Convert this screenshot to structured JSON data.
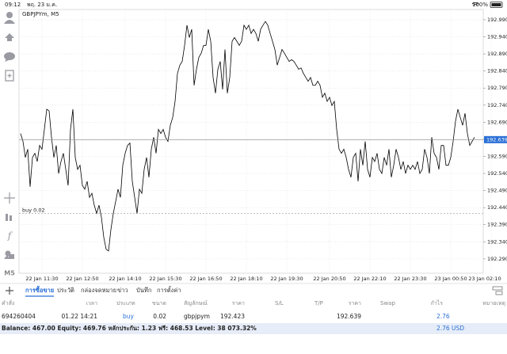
{
  "status_bar": {
    "time": "09:12",
    "date": "พฤ. 23 ม.ค.",
    "battery": "100%"
  },
  "chart_data": {
    "type": "line",
    "title": "GBPJPYm, M5",
    "color": "#000000",
    "grid": true,
    "categories": [
      null,
      null,
      null,
      null,
      null,
      null,
      null,
      null,
      null,
      "22 Jan 11:30",
      null,
      null,
      null,
      null,
      null,
      null,
      null,
      null,
      null,
      null,
      null,
      null,
      null,
      null,
      null,
      null,
      "22 Jan 12:50",
      null,
      null,
      null,
      null,
      null,
      null,
      null,
      null,
      null,
      null,
      null,
      null,
      null,
      null,
      null,
      null,
      null,
      "22 Jan 14:10",
      null,
      null,
      null,
      null,
      null,
      null,
      null,
      null,
      null,
      null,
      null,
      null,
      null,
      null,
      null,
      null,
      "22 Jan 15:30",
      null,
      null,
      null,
      null,
      null,
      null,
      null,
      null,
      null,
      null,
      null,
      null,
      null,
      null,
      null,
      null,
      "22 Jan 16:50",
      null,
      null,
      null,
      null,
      null,
      null,
      null,
      null,
      null,
      null,
      null,
      null,
      null,
      null,
      null,
      null,
      "22 Jan 18:10",
      null,
      null,
      null,
      null,
      null,
      null,
      null,
      null,
      null,
      null,
      null,
      null,
      null,
      null,
      null,
      null,
      "22 Jan 19:30",
      null,
      null,
      null,
      null,
      null,
      null,
      null,
      null,
      null,
      null,
      null,
      null,
      null,
      null,
      null,
      null,
      null,
      "22 Jan 20:50",
      null,
      null,
      null,
      null,
      null,
      null,
      null,
      null,
      null,
      null,
      null,
      null,
      null,
      null,
      null,
      null,
      "22 Jan 22:10",
      null,
      null,
      null,
      null,
      null,
      null,
      null,
      null,
      null,
      null,
      null,
      null,
      null,
      null,
      null,
      null,
      "22 Jan 23:30",
      null,
      null,
      null,
      null,
      null,
      null,
      null,
      null,
      null,
      null,
      null,
      null,
      null,
      null,
      null,
      null,
      "23 Jan 00:50",
      null,
      null,
      null,
      null,
      null,
      null,
      null,
      null,
      null,
      null,
      null,
      null,
      null,
      null,
      null,
      null,
      "23 Jan 02:10"
    ],
    "values": [
      192.657,
      192.634,
      192.587,
      192.611,
      192.501,
      192.587,
      192.599,
      192.575,
      192.622,
      192.611,
      192.669,
      192.728,
      192.723,
      192.646,
      192.587,
      192.622,
      192.54,
      192.575,
      192.599,
      192.552,
      192.505,
      192.669,
      192.728,
      192.587,
      192.552,
      192.564,
      192.505,
      192.494,
      192.517,
      192.47,
      192.482,
      192.447,
      192.423,
      192.447,
      192.412,
      192.353,
      192.318,
      192.313,
      192.376,
      192.423,
      192.458,
      192.494,
      192.47,
      192.564,
      192.599,
      192.622,
      192.629,
      192.517,
      192.47,
      192.423,
      192.494,
      192.482,
      192.552,
      192.587,
      192.529,
      192.611,
      192.646,
      192.599,
      192.669,
      192.657,
      192.669,
      192.646,
      192.634,
      192.681,
      192.704,
      192.751,
      192.833,
      192.857,
      192.868,
      192.915,
      192.974,
      192.938,
      192.962,
      192.798,
      192.845,
      192.88,
      192.892,
      192.915,
      192.915,
      192.962,
      192.927,
      192.821,
      192.775,
      192.845,
      192.868,
      192.786,
      192.903,
      192.775,
      192.821,
      192.927,
      192.938,
      192.927,
      192.915,
      192.927,
      192.974,
      192.962,
      192.974,
      192.95,
      192.962,
      192.95,
      192.927,
      192.962,
      192.974,
      192.985,
      192.974,
      192.95,
      192.927,
      192.903,
      192.857,
      192.88,
      192.903,
      192.892,
      192.88,
      192.868,
      192.873,
      192.868,
      192.857,
      192.845,
      192.849,
      192.833,
      192.821,
      192.81,
      192.821,
      192.798,
      192.798,
      192.81,
      192.798,
      192.763,
      192.775,
      192.751,
      192.763,
      192.739,
      192.751,
      192.669,
      192.611,
      192.599,
      192.611,
      192.587,
      192.552,
      192.529,
      192.587,
      192.599,
      192.517,
      192.611,
      192.564,
      192.634,
      192.552,
      192.529,
      192.587,
      192.575,
      192.599,
      192.552,
      192.54,
      192.587,
      192.564,
      192.611,
      192.529,
      192.564,
      192.611,
      192.587,
      192.552,
      192.575,
      192.54,
      192.564,
      192.552,
      192.564,
      192.552,
      192.575,
      192.54,
      192.552,
      192.611,
      192.587,
      192.54,
      192.646,
      192.599,
      192.587,
      192.552,
      192.622,
      192.622,
      192.564,
      192.564,
      192.587,
      192.634,
      192.693,
      192.728,
      192.704,
      192.681,
      192.716,
      192.657,
      192.622,
      192.634,
      192.646,
      null,
      null,
      null,
      null,
      null,
      null,
      null
    ],
    "ylim": [
      192.248,
      193.02
    ],
    "yticks": [
      {
        "value": 192.29,
        "label": "192.290"
      },
      {
        "value": 192.34,
        "label": "192.340"
      },
      {
        "value": 192.39,
        "label": "192.390"
      },
      {
        "value": 192.44,
        "label": "192.440"
      },
      {
        "value": 192.49,
        "label": "192.490"
      },
      {
        "value": 192.54,
        "label": "192.540"
      },
      {
        "value": 192.59,
        "label": "192.590"
      },
      {
        "value": 192.64,
        "label": "192.640"
      },
      {
        "value": 192.69,
        "label": "192.690"
      },
      {
        "value": 192.74,
        "label": "192.740"
      },
      {
        "value": 192.79,
        "label": "192.790"
      },
      {
        "value": 192.84,
        "label": "192.840"
      },
      {
        "value": 192.89,
        "label": "192.890"
      },
      {
        "value": 192.94,
        "label": "192.940"
      },
      {
        "value": 192.99,
        "label": "192.990"
      }
    ],
    "current_price": 192.639,
    "order_line": {
      "label": "buy 0.02",
      "value": 192.423
    }
  },
  "sidebar": {
    "timeframe": "M5"
  },
  "tabs": [
    "การซื้อขาย",
    "ประวัติ",
    "กล่องจดหมาย",
    "ข่าว",
    "บันทึก",
    "การตั้งค่า"
  ],
  "active_tab": 0,
  "table": {
    "headers": [
      "คำสั่ง",
      "เวลา",
      "ประเภท",
      "ขนาด",
      "สัญลักษณ์",
      "ราคา",
      "S/L",
      "T/P",
      "ราคา",
      "Swap",
      "กำไร",
      "หมายเหตุ"
    ],
    "rows": [
      {
        "order": "694260404",
        "time": "01.22 14:21",
        "type": "buy",
        "size": "0.02",
        "symbol": "gbpjpym",
        "price": "192.423",
        "current_price": "192.639",
        "profit": "2.76"
      }
    ]
  },
  "balance": {
    "text": "Balance: 467.00 Equity: 469.76 หลักประกัน: 1.23 ฟรี: 468.53 Level: 38 073.32%",
    "profit": "2.76",
    "currency": "USD"
  }
}
